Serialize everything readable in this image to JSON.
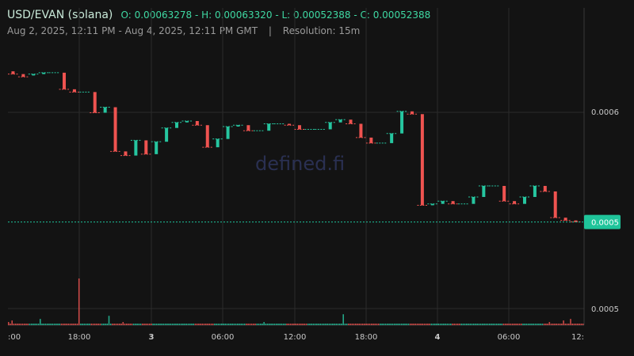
{
  "header": {
    "pair": "USD/EVAN (solana)",
    "ohlc": "O: 0.00063278 - H: 0.00063320 - L: 0.00052388 - C: 0.00052388",
    "range": "Aug 2, 2025, 12:11 PM - Aug 4, 2025, 12:11 PM GMT",
    "separator": "|",
    "resolution": "Resolution: 15m"
  },
  "watermark": "defined.fi",
  "colors": {
    "up": "#26c6a0",
    "down": "#ef5350",
    "grid": "#2b2b2b",
    "price_tag": "#1fc49a",
    "background": "#131313"
  },
  "chart_data": {
    "type": "candlestick",
    "y_axis": {
      "ticks": [
        "0.0006",
        "0.0005"
      ],
      "current_price_label": "0.0005",
      "volume_tick": "0.0005",
      "ylim": [
        0.000495,
        0.000652
      ]
    },
    "x_axis": {
      "ticks": [
        ":00",
        "18:00",
        "3",
        "06:00",
        "12:00",
        "18:00",
        "4",
        "06:00",
        "12:"
      ],
      "bold_ticks": [
        "3",
        "4"
      ]
    },
    "last_price": 0.00052388,
    "candles": [
      {
        "o": 0.000633,
        "c": 0.000631
      },
      {
        "o": 0.000631,
        "c": 0.000629
      },
      {
        "o": 0.00063,
        "c": 0.000631
      },
      {
        "o": 0.000631,
        "c": 0.000632
      },
      {
        "o": 0.000632,
        "c": 0.000632
      },
      {
        "o": 0.000632,
        "c": 0.00062
      },
      {
        "o": 0.00062,
        "c": 0.000618
      },
      {
        "o": 0.000618,
        "c": 0.000618
      },
      {
        "o": 0.000618,
        "c": 0.000603
      },
      {
        "o": 0.000603,
        "c": 0.000607
      },
      {
        "o": 0.000607,
        "c": 0.000575
      },
      {
        "o": 0.000575,
        "c": 0.000572
      },
      {
        "o": 0.000572,
        "c": 0.000583
      },
      {
        "o": 0.000583,
        "c": 0.000573
      },
      {
        "o": 0.000573,
        "c": 0.000582
      },
      {
        "o": 0.000582,
        "c": 0.000592
      },
      {
        "o": 0.000592,
        "c": 0.000596
      },
      {
        "o": 0.000596,
        "c": 0.000597
      },
      {
        "o": 0.000597,
        "c": 0.000594
      },
      {
        "o": 0.000594,
        "c": 0.000578
      },
      {
        "o": 0.000578,
        "c": 0.000584
      },
      {
        "o": 0.000584,
        "c": 0.000593
      },
      {
        "o": 0.000593,
        "c": 0.000594
      },
      {
        "o": 0.000594,
        "c": 0.00059
      },
      {
        "o": 0.00059,
        "c": 0.00059
      },
      {
        "o": 0.00059,
        "c": 0.000595
      },
      {
        "o": 0.000595,
        "c": 0.000595
      },
      {
        "o": 0.000595,
        "c": 0.000594
      },
      {
        "o": 0.000594,
        "c": 0.000591
      },
      {
        "o": 0.000591,
        "c": 0.000591
      },
      {
        "o": 0.000591,
        "c": 0.000591
      },
      {
        "o": 0.000591,
        "c": 0.000596
      },
      {
        "o": 0.000596,
        "c": 0.000598
      },
      {
        "o": 0.000598,
        "c": 0.000595
      },
      {
        "o": 0.000595,
        "c": 0.000585
      },
      {
        "o": 0.000585,
        "c": 0.000581
      },
      {
        "o": 0.000581,
        "c": 0.000581
      },
      {
        "o": 0.000581,
        "c": 0.000588
      },
      {
        "o": 0.000588,
        "c": 0.000604
      },
      {
        "o": 0.000604,
        "c": 0.000602
      },
      {
        "o": 0.000602,
        "c": 0.000536
      },
      {
        "o": 0.000536,
        "c": 0.000537
      },
      {
        "o": 0.000537,
        "c": 0.000539
      },
      {
        "o": 0.000539,
        "c": 0.000537
      },
      {
        "o": 0.000537,
        "c": 0.000537
      },
      {
        "o": 0.000537,
        "c": 0.000542
      },
      {
        "o": 0.000542,
        "c": 0.00055
      },
      {
        "o": 0.00055,
        "c": 0.00055
      },
      {
        "o": 0.00055,
        "c": 0.000539
      },
      {
        "o": 0.000539,
        "c": 0.000537
      },
      {
        "o": 0.000537,
        "c": 0.000542
      },
      {
        "o": 0.000542,
        "c": 0.00055
      },
      {
        "o": 0.00055,
        "c": 0.000546
      },
      {
        "o": 0.000546,
        "c": 0.000527
      },
      {
        "o": 0.000527,
        "c": 0.000525
      },
      {
        "o": 0.000525,
        "c": 0.000524
      }
    ],
    "volumes": [
      2,
      1,
      3,
      1,
      1,
      1,
      1,
      1,
      1,
      1,
      1,
      1,
      1,
      1,
      1,
      1,
      1,
      1,
      4,
      1,
      1,
      1,
      1,
      1,
      1,
      1,
      1,
      1,
      1,
      1,
      1,
      1,
      1,
      1,
      1,
      1,
      1,
      1,
      1,
      1,
      30,
      1,
      1,
      1,
      1,
      1,
      1,
      1,
      1,
      1,
      1,
      1,
      1,
      1,
      1,
      1,
      1,
      6,
      1,
      1,
      1,
      1,
      1,
      1,
      1,
      2,
      1,
      1,
      1,
      1,
      1,
      1,
      1,
      1,
      1,
      1,
      1,
      1,
      1,
      1,
      1,
      1,
      1,
      1,
      1,
      1,
      1,
      1,
      1,
      1,
      1,
      1,
      1,
      1,
      1,
      1,
      1,
      1,
      1,
      1,
      1,
      1,
      1,
      1,
      1,
      1,
      1,
      1,
      1,
      1,
      1,
      1,
      1,
      1,
      1,
      1,
      1,
      1,
      1,
      1,
      1,
      1,
      1,
      1,
      1,
      1,
      1,
      1,
      1,
      1,
      1,
      1,
      1,
      1,
      1,
      1,
      1,
      1,
      1,
      1,
      1,
      1,
      1,
      1,
      1,
      2,
      1,
      1,
      1,
      1,
      1,
      1,
      1,
      1,
      1,
      1,
      1,
      1,
      1,
      1,
      1,
      1,
      1,
      1,
      1,
      1,
      1,
      1,
      1,
      1,
      1,
      1,
      1,
      1,
      1,
      1,
      1,
      1,
      1,
      1,
      1,
      1,
      1,
      1,
      1,
      1,
      1,
      1,
      1,
      1,
      7,
      1,
      1,
      1,
      1,
      1,
      1,
      1,
      1,
      1,
      1,
      1,
      1,
      1,
      1,
      1,
      1,
      1,
      1,
      1,
      1,
      1,
      1,
      1,
      1,
      1,
      1,
      1,
      1,
      1,
      1,
      1,
      1,
      1,
      1,
      1,
      1,
      1,
      1,
      1,
      1,
      1,
      1,
      1,
      1,
      1,
      1,
      1,
      1,
      1,
      1,
      1,
      1,
      1,
      1,
      1,
      1,
      1,
      1,
      1,
      1,
      1,
      1,
      1,
      1,
      1,
      1,
      1,
      1,
      1,
      1,
      1,
      1,
      1,
      1,
      1,
      1,
      1,
      1,
      1,
      1,
      1,
      1,
      1,
      1,
      1,
      1,
      1,
      1,
      1,
      1,
      1,
      1,
      1,
      1,
      1,
      1,
      1,
      1,
      1,
      1,
      1,
      1,
      1,
      1,
      1,
      1,
      1,
      1,
      1,
      1,
      1,
      1,
      1,
      1,
      1,
      1,
      2,
      1,
      1,
      1,
      1,
      1,
      1,
      1,
      3,
      1,
      1,
      1,
      4,
      1,
      1,
      1,
      1,
      1,
      1,
      1
    ]
  }
}
